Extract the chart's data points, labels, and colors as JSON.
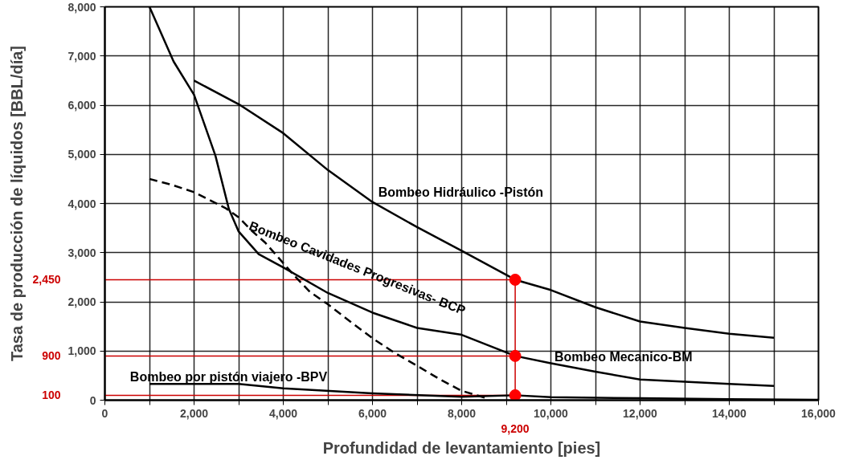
{
  "chart_data": {
    "type": "line",
    "xlabel": "Profundidad de levantamiento [pies]",
    "ylabel": "Tasa de producción de líquidos [BBL/día]",
    "xlim": [
      0,
      16000
    ],
    "ylim": [
      0,
      8000
    ],
    "xticks": [
      0,
      {
        "value": 1000,
        "label": null
      },
      {
        "value": 2000,
        "label": "2,000"
      },
      {
        "value": 3000,
        "label": null
      },
      {
        "value": 4000,
        "label": "4,000"
      },
      {
        "value": 5000,
        "label": null
      },
      {
        "value": 6000,
        "label": "6,000"
      },
      {
        "value": 7000,
        "label": null
      },
      {
        "value": 8000,
        "label": "8,000"
      },
      {
        "value": 9000,
        "label": null
      },
      {
        "value": 10000,
        "label": "10,000"
      },
      {
        "value": 11000,
        "label": null
      },
      {
        "value": 12000,
        "label": "12,000"
      },
      {
        "value": 13000,
        "label": null
      },
      {
        "value": 14000,
        "label": "14,000"
      },
      {
        "value": 15000,
        "label": null
      },
      {
        "value": 16000,
        "label": "16,000"
      }
    ],
    "yticks": [
      0,
      {
        "value": 1000,
        "label": "1,000"
      },
      {
        "value": 2000,
        "label": "2,000"
      },
      {
        "value": 3000,
        "label": "3,000"
      },
      {
        "value": 4000,
        "label": "4,000"
      },
      {
        "value": 5000,
        "label": "5,000"
      },
      {
        "value": 6000,
        "label": "6,000"
      },
      {
        "value": 7000,
        "label": "7,000"
      },
      {
        "value": 8000,
        "label": "8,000"
      }
    ],
    "grid": true,
    "line_style": "solid",
    "marker": "none",
    "series": [
      {
        "name": "Bombeo Hidráulico -Pistón",
        "color": "#000000",
        "x": [
          2000,
          3000,
          4000,
          5000,
          6000,
          7000,
          8000,
          9200,
          10000,
          11000,
          12000,
          13000,
          14000,
          15000
        ],
        "values": [
          6500,
          6020,
          5430,
          4680,
          4030,
          3520,
          3040,
          2450,
          2240,
          1890,
          1600,
          1470,
          1350,
          1270
        ]
      },
      {
        "name": "Bombeo Mecanico-BM",
        "color": "#000000",
        "x": [
          1000,
          1540,
          2000,
          2480,
          2780,
          3000,
          3450,
          4000,
          5000,
          6000,
          7000,
          8000,
          9200,
          10000,
          11000,
          12000,
          14000,
          15000
        ],
        "values": [
          8000,
          6890,
          6210,
          4970,
          3890,
          3430,
          2970,
          2700,
          2180,
          1780,
          1470,
          1330,
          900,
          750,
          580,
          420,
          330,
          290
        ]
      },
      {
        "name": "Bombeo Cavidades Progresivas- BCP",
        "line_style": "dashed",
        "color": "#000000",
        "x": [
          1000,
          1500,
          2000,
          2700,
          3000,
          3300,
          3600,
          4200,
          4600,
          5000,
          5500,
          6000,
          6500,
          7000,
          7500,
          8000,
          8600
        ],
        "values": [
          4500,
          4380,
          4230,
          3910,
          3720,
          3440,
          3200,
          2580,
          2200,
          1950,
          1600,
          1260,
          960,
          700,
          430,
          190,
          30
        ]
      },
      {
        "name": "Bombeo por pistón viajero -BPV",
        "color": "#000000",
        "x": [
          1000,
          3000,
          4000,
          6000,
          8000,
          9200,
          10000,
          12000,
          14000,
          16000
        ],
        "values": [
          330,
          330,
          240,
          140,
          70,
          100,
          60,
          40,
          20,
          10
        ]
      },
      {
        "type": "scatter",
        "marker": "circle",
        "color": "#ff0000",
        "x": [
          9200,
          9200,
          9200
        ],
        "values": [
          2450,
          900,
          100
        ]
      }
    ],
    "ref_lines": [
      {
        "axis": "y",
        "value": 2450,
        "label": "2,450",
        "color": "#cc0000"
      },
      {
        "axis": "y",
        "value": 900,
        "label": "900",
        "color": "#cc0000"
      },
      {
        "axis": "y",
        "value": 100,
        "label": "100",
        "color": "#cc0000"
      },
      {
        "axis": "x",
        "value": 9200,
        "label": "9,200",
        "color": "#cc0000"
      }
    ]
  }
}
